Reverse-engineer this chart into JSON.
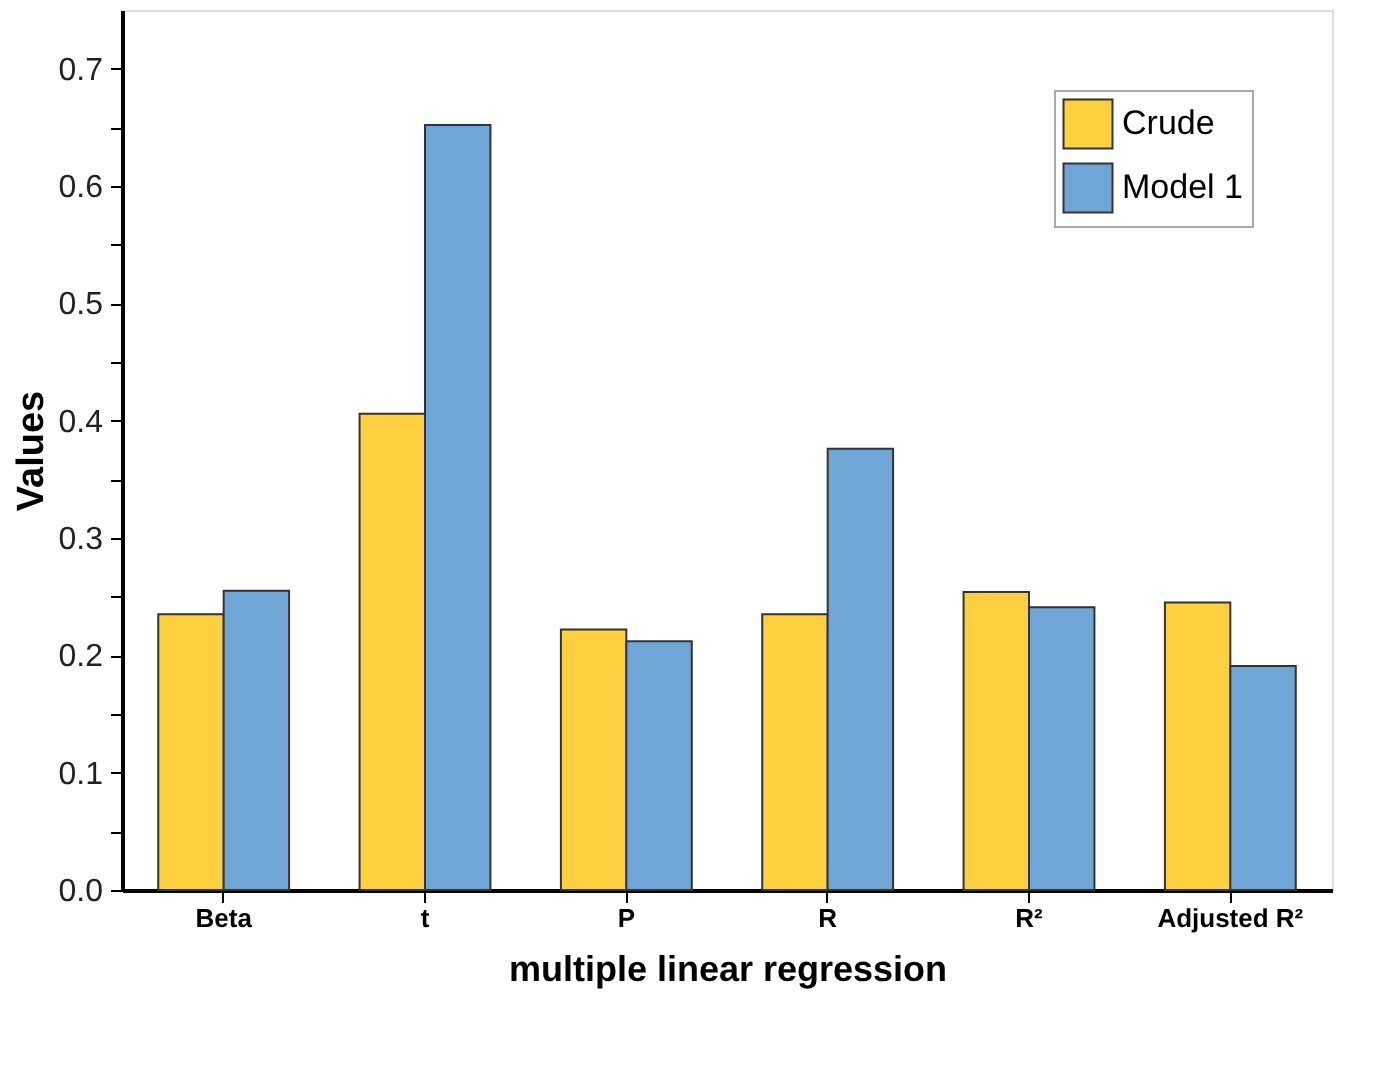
{
  "chart_data": {
    "type": "bar",
    "xlabel": "multiple linear regression",
    "ylabel": "Values",
    "categories": [
      "Beta",
      "t",
      "P",
      "R",
      "R²",
      "Adjusted R²"
    ],
    "series": [
      {
        "name": "Crude",
        "color": "#fdd040",
        "values": [
          0.235,
          0.406,
          0.222,
          0.235,
          0.254,
          0.245
        ]
      },
      {
        "name": "Model 1",
        "color": "#6fa6d6",
        "values": [
          0.255,
          0.652,
          0.212,
          0.376,
          0.241,
          0.191
        ]
      }
    ],
    "ylim": [
      0,
      0.75
    ],
    "yticks": [
      {
        "value": 0,
        "label": "0.0"
      },
      {
        "value": 0.05,
        "label": null
      },
      0.1,
      {
        "value": 0.15,
        "label": null
      },
      0.2,
      {
        "value": 0.25,
        "label": null
      },
      0.3,
      {
        "value": 0.35,
        "label": null
      },
      0.4,
      {
        "value": 0.45,
        "label": null
      },
      0.5,
      {
        "value": 0.55,
        "label": null
      },
      0.6,
      {
        "value": 0.65,
        "label": null
      },
      0.7
    ],
    "grid": false,
    "legend": "top right"
  }
}
